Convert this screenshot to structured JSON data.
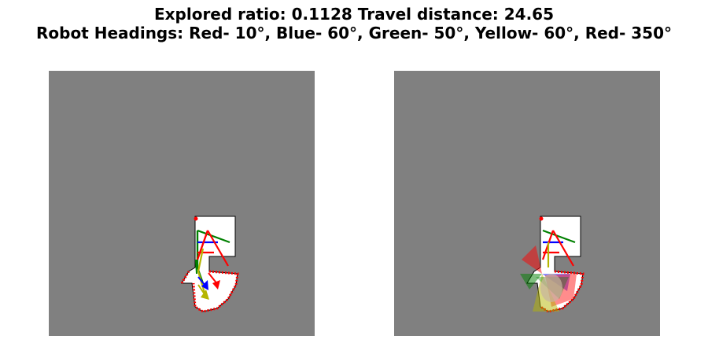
{
  "title": {
    "line1": "Explored ratio: 0.1128  Travel distance: 24.65",
    "line2": "Robot Headings: Red- 10°, Blue- 60°, Green- 50°, Yellow- 60°, Red- 350°"
  },
  "colors": {
    "unknown": "#808080",
    "free": "#ffffff",
    "frontier": "#ff0000",
    "robot_red": "#ff0000",
    "robot_blue": "#0000ff",
    "robot_green": "#008000",
    "robot_yellow": "#b5b500"
  },
  "panels": [
    {
      "name": "exploration-map-with-headings"
    },
    {
      "name": "exploration-map-with-sensor-fov"
    }
  ]
}
